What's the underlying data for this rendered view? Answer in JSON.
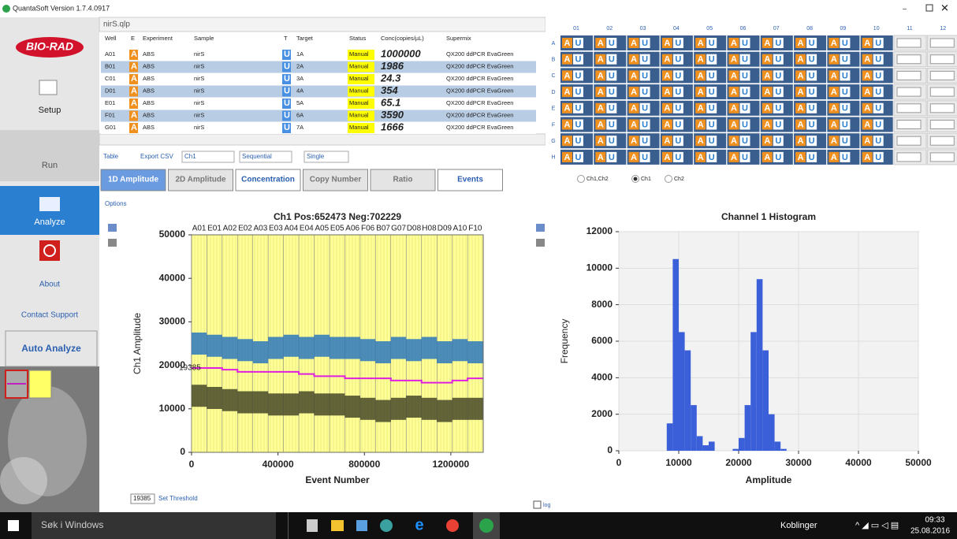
{
  "window": {
    "title": "QuantaSoft Version 1.7.4.0917"
  },
  "sidebar": {
    "logo": "BIO-RAD",
    "buttons": [
      "Setup",
      "Run",
      "Analyze",
      "About",
      "Contact Support",
      "Auto Analyze"
    ]
  },
  "file": "nirS.qlp",
  "table": {
    "headers": [
      "Well",
      "E",
      "Experiment",
      "Sample",
      "T",
      "Target",
      "Status",
      "Conc(copies/µL)",
      "Supermix"
    ],
    "rows": [
      [
        "A01",
        "A",
        "ABS",
        "nirS",
        "U",
        "1A",
        "Manual",
        1000000,
        "QX200 ddPCR EvaGreen"
      ],
      [
        "B01",
        "A",
        "ABS",
        "nirS",
        "U",
        "2A",
        "Manual",
        1986,
        "QX200 ddPCR EvaGreen"
      ],
      [
        "C01",
        "A",
        "ABS",
        "nirS",
        "U",
        "3A",
        "Manual",
        24.3,
        "QX200 ddPCR EvaGreen"
      ],
      [
        "D01",
        "A",
        "ABS",
        "nirS",
        "U",
        "4A",
        "Manual",
        354,
        "QX200 ddPCR EvaGreen"
      ],
      [
        "E01",
        "A",
        "ABS",
        "nirS",
        "U",
        "5A",
        "Manual",
        65.1,
        "QX200 ddPCR EvaGreen"
      ],
      [
        "F01",
        "A",
        "ABS",
        "nirS",
        "U",
        "6A",
        "Manual",
        3590,
        "QX200 ddPCR EvaGreen"
      ],
      [
        "G01",
        "A",
        "ABS",
        "nirS",
        "U",
        "7A",
        "Manual",
        1666,
        "QX200 ddPCR EvaGreen"
      ]
    ]
  },
  "table_toolbar": [
    "Table",
    "Export CSV",
    "Ch1",
    "Sequential",
    "Single"
  ],
  "plate": {
    "columns": [
      "01",
      "02",
      "03",
      "04",
      "05",
      "06",
      "07",
      "08",
      "09",
      "10",
      "11",
      "12"
    ],
    "rows": [
      "A",
      "B",
      "C",
      "D",
      "E",
      "F",
      "G",
      "H"
    ],
    "well_text": [
      "A",
      "U"
    ]
  },
  "tabs": [
    "1D Amplitude",
    "2D Amplitude",
    "Concentration",
    "Copy Number",
    "Ratio",
    "Events"
  ],
  "channels": [
    "Ch1,Ch2",
    "Ch1",
    "Ch2"
  ],
  "options": "Options",
  "chart_data": [
    {
      "type": "scatter",
      "title": "Ch1 Pos:652473 Neg:702229",
      "x_label": "Event Number",
      "y_label": "Ch1 Amplitude",
      "xlim": [
        0,
        1350000
      ],
      "xticks": [
        0,
        400000,
        800000,
        1200000
      ],
      "ylim": [
        0,
        50000
      ],
      "yticks": [
        0,
        10000,
        20000,
        30000,
        40000,
        50000
      ],
      "well_labels": [
        "A01",
        "E01",
        "A02",
        "E02",
        "A03",
        "E03",
        "A04",
        "E04",
        "A05",
        "E05",
        "A06",
        "F06",
        "B07",
        "G07",
        "D08",
        "H08",
        "D09",
        "A10",
        "F10"
      ],
      "x": [
        35000,
        106000,
        177000,
        248000,
        319000,
        390000,
        461000,
        532000,
        603000,
        674000,
        745000,
        816000,
        887000,
        958000,
        1029000,
        1100000,
        1171000,
        1242000,
        1313000
      ],
      "series": [
        {
          "color": "#1f6fbf",
          "style": "points",
          "values": [
            25000,
            24500,
            24000,
            23500,
            23000,
            24000,
            24500,
            24000,
            24500,
            24000,
            24000,
            23500,
            23000,
            24000,
            23500,
            24000,
            23000,
            23500,
            23000
          ]
        },
        {
          "color": "#3d3d22",
          "style": "points",
          "values": [
            13000,
            12500,
            12000,
            11500,
            11500,
            11000,
            11000,
            11500,
            11000,
            11000,
            10500,
            10000,
            9500,
            10000,
            10500,
            10000,
            9500,
            10000,
            10000
          ]
        },
        {
          "color": "#e020e0",
          "style": "line",
          "values": [
            19385,
            19385,
            19000,
            18500,
            18500,
            18500,
            18500,
            18000,
            17500,
            17500,
            17000,
            17000,
            17000,
            16500,
            16500,
            16000,
            16000,
            16500,
            17000
          ]
        }
      ],
      "threshold": 19385,
      "background": "#ffff99"
    },
    {
      "type": "histogram",
      "title": "Channel 1 Histogram",
      "x_label": "Amplitude",
      "y_label": "Frequency",
      "xlim": [
        0,
        50000
      ],
      "xticks": [
        0,
        10000,
        20000,
        30000,
        40000,
        50000
      ],
      "ylim": [
        0,
        12000
      ],
      "yticks": [
        0,
        2000,
        4000,
        6000,
        8000,
        10000,
        12000
      ],
      "bins": [
        0,
        1000,
        2000,
        3000,
        4000,
        5000,
        6000,
        7000,
        8000,
        9000,
        10000,
        11000,
        12000,
        13000,
        14000,
        15000,
        16000,
        17000,
        18000,
        19000,
        20000,
        21000,
        22000,
        23000,
        24000,
        25000,
        26000,
        27000,
        28000,
        29000,
        30000,
        31000,
        32000,
        33000,
        34000,
        35000,
        36000,
        37000,
        38000,
        39000,
        40000,
        41000,
        42000,
        43000,
        44000,
        45000,
        46000,
        47000,
        48000,
        49000,
        50000
      ],
      "counts": [
        0,
        0,
        0,
        0,
        0,
        0,
        0,
        0,
        1500,
        10500,
        6500,
        5500,
        2500,
        800,
        300,
        500,
        0,
        0,
        0,
        100,
        700,
        2500,
        6500,
        9400,
        5500,
        2000,
        500,
        100,
        0,
        0,
        0,
        0,
        0,
        0,
        0,
        0,
        0,
        0,
        0,
        0,
        0,
        0,
        0,
        0,
        0,
        0,
        0,
        0,
        0,
        0
      ],
      "color": "#3b5fd9",
      "grid": true
    }
  ],
  "threshold_input": {
    "value": 19385,
    "button": "Set Threshold"
  },
  "log_label": "log",
  "taskbar": {
    "search": "Søk i Windows",
    "links": "Koblinger",
    "time": "09:33",
    "date": "25.08.2016"
  }
}
